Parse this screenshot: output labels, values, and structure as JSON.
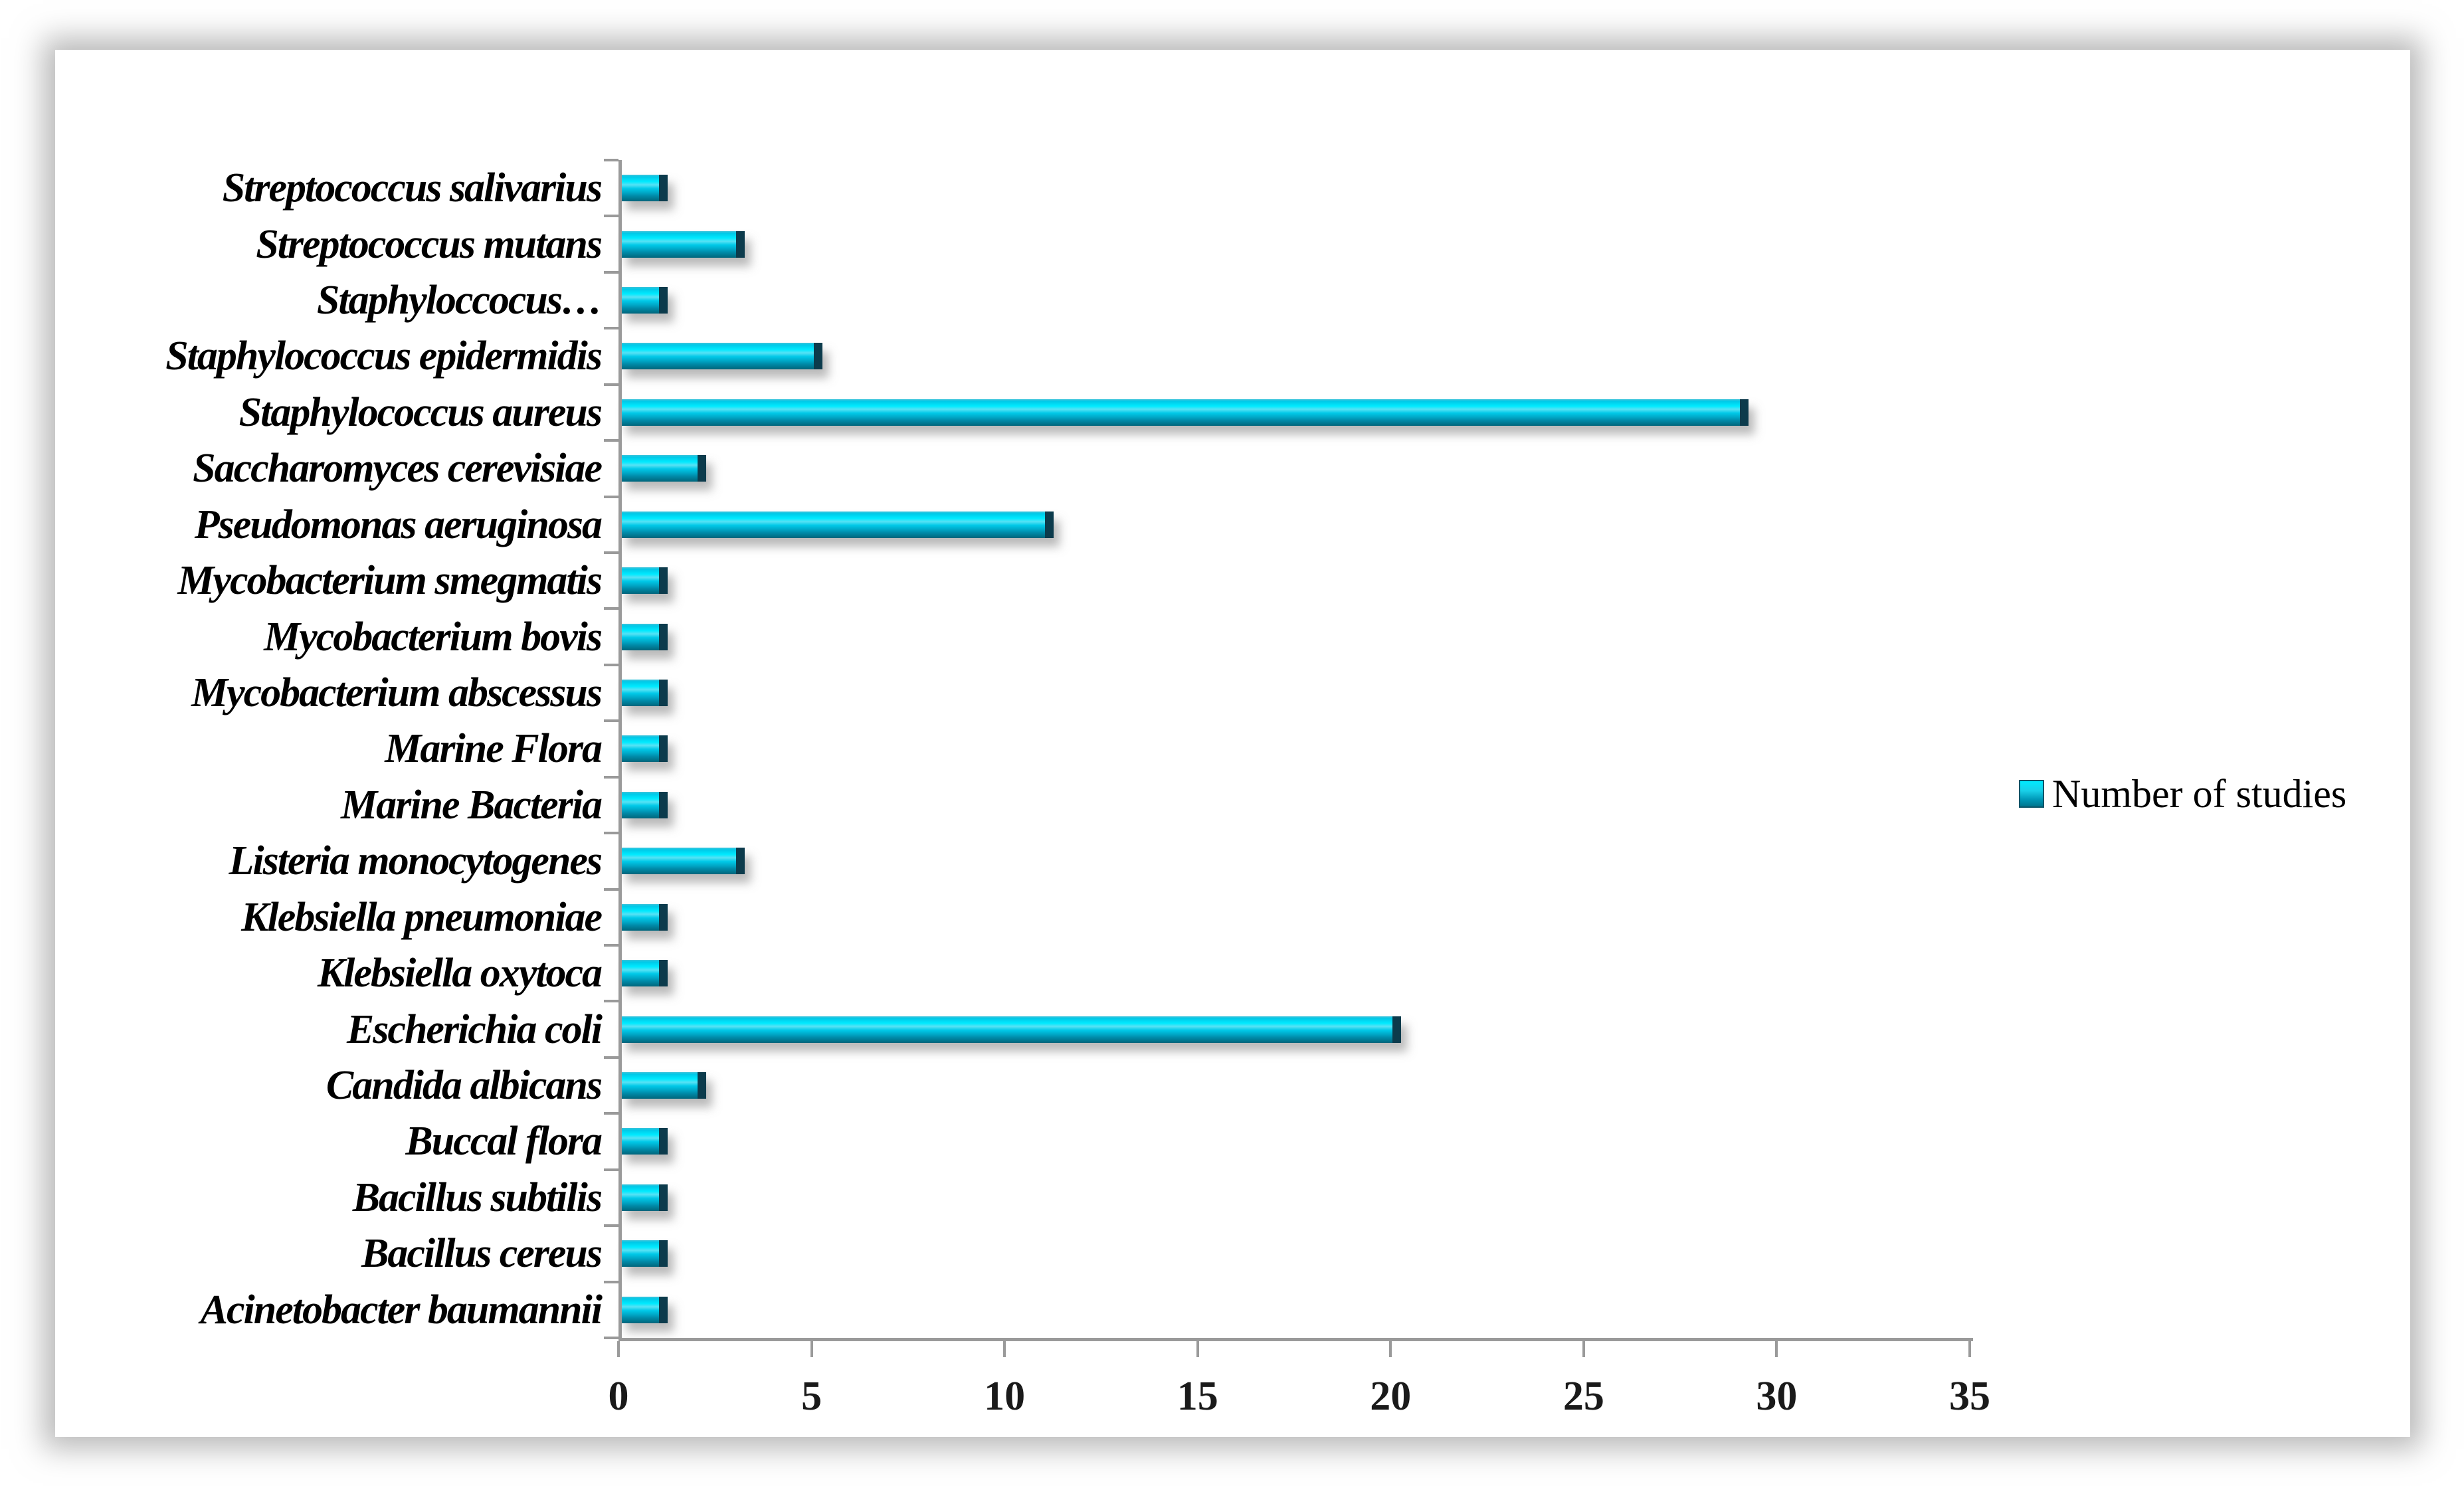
{
  "chart_data": {
    "type": "bar",
    "orientation": "horizontal",
    "title": "",
    "categories": [
      "Streptococcus salivarius",
      "Streptococcus mutans",
      "Staphyloccocus…",
      "Staphylococcus epidermidis",
      "Staphylococcus aureus",
      "Saccharomyces cerevisiae",
      "Pseudomonas aeruginosa",
      "Mycobacterium smegmatis",
      "Mycobacterium bovis",
      "Mycobacterium abscessus",
      "Marine Flora",
      "Marine Bacteria",
      "Listeria monocytogenes",
      "Klebsiella pneumoniae",
      "Klebsiella oxytoca",
      "Escherichia coli",
      "Candida albicans",
      "Buccal flora",
      "Bacillus subtilis",
      "Bacillus cereus",
      "Acinetobacter baumannii"
    ],
    "values": [
      1,
      3,
      1,
      5,
      29,
      2,
      11,
      1,
      1,
      1,
      1,
      1,
      3,
      1,
      1,
      20,
      2,
      1,
      1,
      1,
      1
    ],
    "xlabel": "",
    "ylabel": "",
    "xlim": [
      0,
      35
    ],
    "xticks": [
      0,
      5,
      10,
      15,
      20,
      25,
      30,
      35
    ],
    "grid": false,
    "legend": {
      "label": "Number of studies",
      "position": "right-middle"
    },
    "colors": {
      "bar_main": "#00c9e8",
      "bar_highlight": "#00eaff",
      "bar_dark": "#00758d",
      "bar_cap": "#0c3b4c",
      "axis": "#9a9a9a",
      "text": "#000000"
    }
  }
}
